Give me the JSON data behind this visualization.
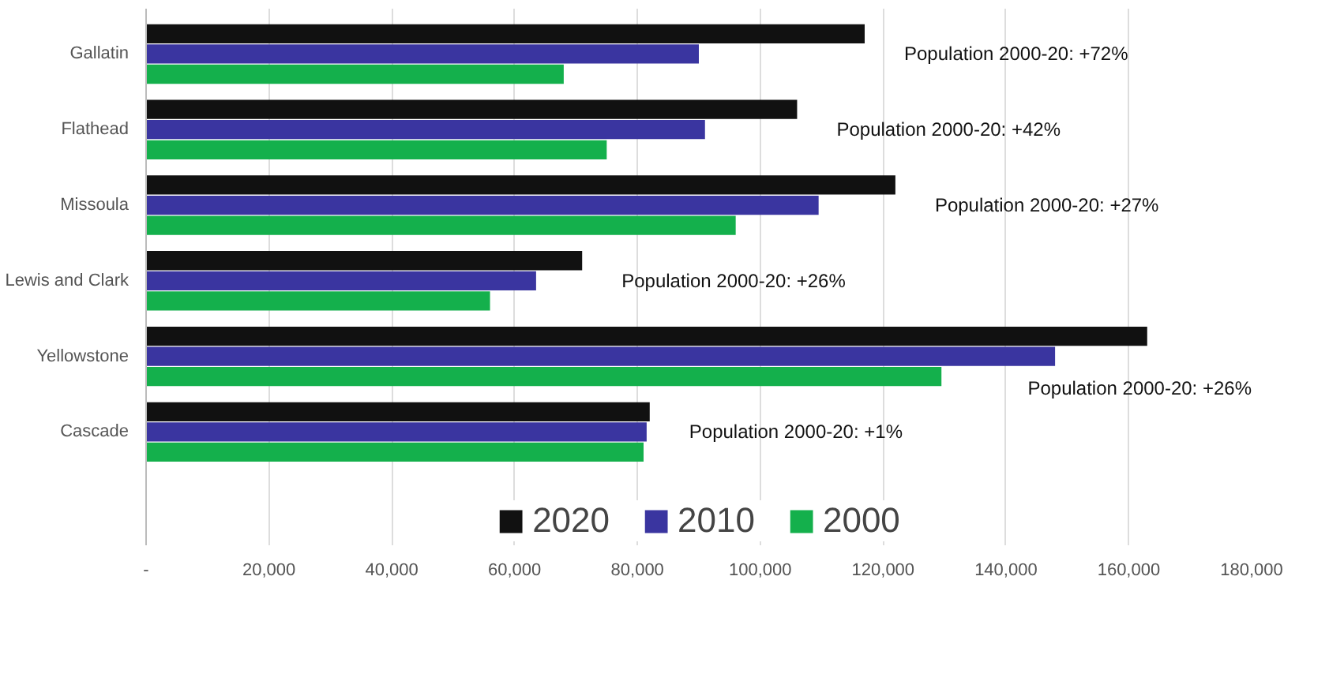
{
  "chart_data": {
    "type": "bar",
    "orientation": "horizontal",
    "categories": [
      "Gallatin",
      "Flathead",
      "Missoula",
      "Lewis and Clark",
      "Yellowstone",
      "Cascade"
    ],
    "series": [
      {
        "name": "2020",
        "color": "#111111",
        "values": [
          117000,
          106000,
          122000,
          71000,
          163000,
          82000
        ]
      },
      {
        "name": "2010",
        "color": "#3a35a0",
        "values": [
          90000,
          91000,
          109500,
          63500,
          148000,
          81500
        ]
      },
      {
        "name": "2000",
        "color": "#14b04c",
        "values": [
          68000,
          75000,
          96000,
          56000,
          129500,
          81000
        ]
      }
    ],
    "xlim": [
      0,
      180000
    ],
    "xticks": [
      {
        "value": 0,
        "label": "-"
      },
      {
        "value": 20000,
        "label": "20,000"
      },
      {
        "value": 40000,
        "label": "40,000"
      },
      {
        "value": 60000,
        "label": "60,000"
      },
      {
        "value": 80000,
        "label": "80,000"
      },
      {
        "value": 100000,
        "label": "100,000"
      },
      {
        "value": 120000,
        "label": "120,000"
      },
      {
        "value": 140000,
        "label": "140,000"
      },
      {
        "value": 160000,
        "label": "160,000"
      },
      {
        "value": 180000,
        "label": "180,000"
      }
    ],
    "grid": "x",
    "legend": "bottom",
    "annotations": [
      "Population 2000-20: +72%",
      "Population 2000-20: +42%",
      "Population 2000-20: +27%",
      "Population 2000-20: +26%",
      "Population 2000-20: +26%",
      "Population 2000-20:  +1%"
    ]
  }
}
